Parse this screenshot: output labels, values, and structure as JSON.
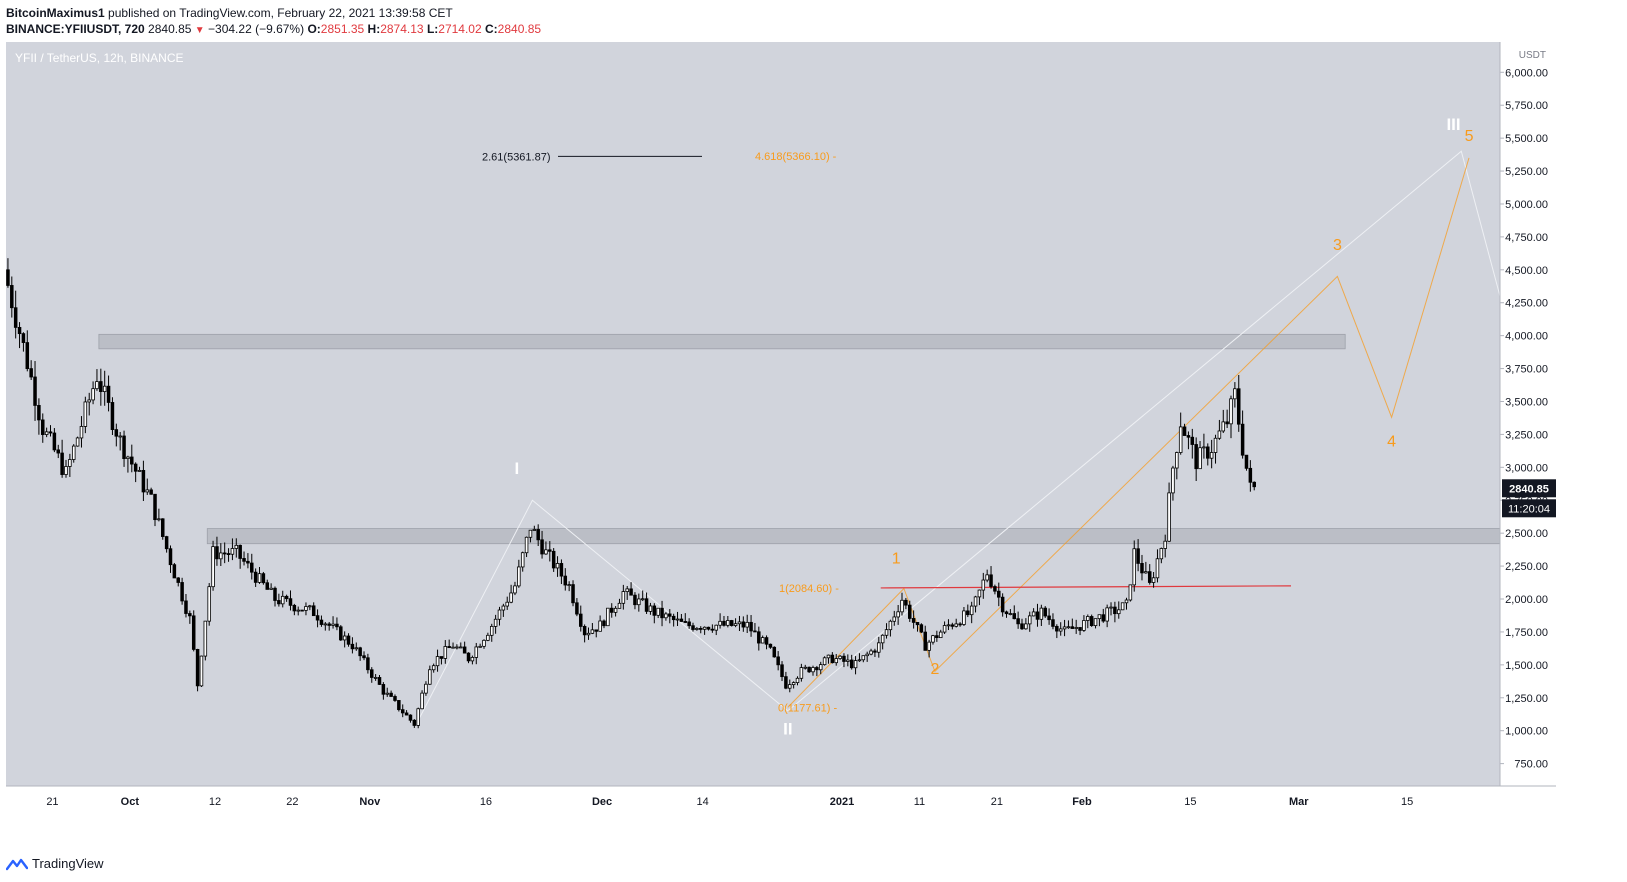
{
  "header": {
    "author": "BitcoinMaximus1",
    "published_text": "published on TradingView.com, February 22, 2021 13:39:58 CET",
    "symbol": "BINANCE:YFIIUSDT, 720",
    "last": "2840.85",
    "change": "−304.22 (−9.67%)",
    "o_label": "O:",
    "o_value": "2851.35",
    "h_label": "H:",
    "h_value": "2874.13",
    "l_label": "L:",
    "l_value": "2714.02",
    "c_label": "C:",
    "c_value": "2840.85"
  },
  "pane_title": "YFII / TetherUS, 12h, BINANCE",
  "footer": {
    "brand": "TradingView"
  },
  "colors": {
    "plot_bg": "#d1d4dc",
    "candle": "#000000",
    "fib_orange": "#f89b1c",
    "wave_orange": "#f89b1c",
    "wave_white": "#ffffff",
    "resistance_box": "#b8bbc3",
    "trendline_red": "#e0393e",
    "price_label_bg": "#131722"
  },
  "chart_data": {
    "type": "candlestick",
    "y_axis_unit": "USDT",
    "ylim": [
      580,
      6230
    ],
    "y_ticks": [
      "6,000.00",
      "5,750.00",
      "5,500.00",
      "5,250.00",
      "5,000.00",
      "4,750.00",
      "4,500.00",
      "4,250.00",
      "4,000.00",
      "3,750.00",
      "3,500.00",
      "3,250.00",
      "3,000.00",
      "2,750.00",
      "2,500.00",
      "2,250.00",
      "2,000.00",
      "1,750.00",
      "1,500.00",
      "1,250.00",
      "1,000.00",
      "750.00"
    ],
    "y_tick_values": [
      6000,
      5750,
      5500,
      5250,
      5000,
      4750,
      4500,
      4250,
      4000,
      3750,
      3500,
      3250,
      3000,
      2750,
      2500,
      2250,
      2000,
      1750,
      1500,
      1250,
      1000,
      750
    ],
    "x_start_date": "2020-09-15",
    "x_end_date": "2021-03-27",
    "x_ticks": [
      {
        "label": "21",
        "date": "2020-09-21"
      },
      {
        "label": "Oct",
        "date": "2020-10-01"
      },
      {
        "label": "12",
        "date": "2020-10-12"
      },
      {
        "label": "22",
        "date": "2020-10-22"
      },
      {
        "label": "Nov",
        "date": "2020-11-01"
      },
      {
        "label": "16",
        "date": "2020-11-16"
      },
      {
        "label": "Dec",
        "date": "2020-12-01"
      },
      {
        "label": "14",
        "date": "2020-12-14"
      },
      {
        "label": "2021",
        "date": "2021-01-01"
      },
      {
        "label": "11",
        "date": "2021-01-11"
      },
      {
        "label": "21",
        "date": "2021-01-21"
      },
      {
        "label": "Feb",
        "date": "2021-02-01"
      },
      {
        "label": "15",
        "date": "2021-02-15"
      },
      {
        "label": "Mar",
        "date": "2021-03-01"
      },
      {
        "label": "15",
        "date": "2021-03-15"
      }
    ],
    "price_anchors": [
      {
        "date": "2020-09-15",
        "price": 4500
      },
      {
        "date": "2020-09-18",
        "price": 3800
      },
      {
        "date": "2020-09-20",
        "price": 3300
      },
      {
        "date": "2020-09-23",
        "price": 2950
      },
      {
        "date": "2020-09-27",
        "price": 3700
      },
      {
        "date": "2020-09-30",
        "price": 3200
      },
      {
        "date": "2020-10-04",
        "price": 2750
      },
      {
        "date": "2020-10-07",
        "price": 2200
      },
      {
        "date": "2020-10-09",
        "price": 1850
      },
      {
        "date": "2020-10-10",
        "price": 1350
      },
      {
        "date": "2020-10-12",
        "price": 2350
      },
      {
        "date": "2020-10-15",
        "price": 2350
      },
      {
        "date": "2020-10-20",
        "price": 2000
      },
      {
        "date": "2020-10-25",
        "price": 1900
      },
      {
        "date": "2020-10-30",
        "price": 1650
      },
      {
        "date": "2020-11-03",
        "price": 1300
      },
      {
        "date": "2020-11-07",
        "price": 1050
      },
      {
        "date": "2020-11-09",
        "price": 1500
      },
      {
        "date": "2020-11-12",
        "price": 1650
      },
      {
        "date": "2020-11-14",
        "price": 1550
      },
      {
        "date": "2020-11-17",
        "price": 1800
      },
      {
        "date": "2020-11-20",
        "price": 2100
      },
      {
        "date": "2020-11-22",
        "price": 2550
      },
      {
        "date": "2020-11-24",
        "price": 2350
      },
      {
        "date": "2020-11-27",
        "price": 2100
      },
      {
        "date": "2020-11-29",
        "price": 1750
      },
      {
        "date": "2020-12-01",
        "price": 1800
      },
      {
        "date": "2020-12-04",
        "price": 2050
      },
      {
        "date": "2020-12-08",
        "price": 1900
      },
      {
        "date": "2020-12-12",
        "price": 1800
      },
      {
        "date": "2020-12-16",
        "price": 1800
      },
      {
        "date": "2020-12-20",
        "price": 1800
      },
      {
        "date": "2020-12-23",
        "price": 1600
      },
      {
        "date": "2020-12-25",
        "price": 1350
      },
      {
        "date": "2020-12-27",
        "price": 1450
      },
      {
        "date": "2020-12-31",
        "price": 1550
      },
      {
        "date": "2021-01-03",
        "price": 1500
      },
      {
        "date": "2021-01-06",
        "price": 1650
      },
      {
        "date": "2021-01-09",
        "price": 2000
      },
      {
        "date": "2021-01-12",
        "price": 1650
      },
      {
        "date": "2021-01-15",
        "price": 1800
      },
      {
        "date": "2021-01-18",
        "price": 1900
      },
      {
        "date": "2021-01-20",
        "price": 2200
      },
      {
        "date": "2021-01-22",
        "price": 1950
      },
      {
        "date": "2021-01-24",
        "price": 1800
      },
      {
        "date": "2021-01-27",
        "price": 1900
      },
      {
        "date": "2021-01-30",
        "price": 1750
      },
      {
        "date": "2021-02-03",
        "price": 1850
      },
      {
        "date": "2021-02-07",
        "price": 1950
      },
      {
        "date": "2021-02-08",
        "price": 2350
      },
      {
        "date": "2021-02-10",
        "price": 2100
      },
      {
        "date": "2021-02-12",
        "price": 2500
      },
      {
        "date": "2021-02-13",
        "price": 3000
      },
      {
        "date": "2021-02-14",
        "price": 3350
      },
      {
        "date": "2021-02-16",
        "price": 3050
      },
      {
        "date": "2021-02-18",
        "price": 3150
      },
      {
        "date": "2021-02-20",
        "price": 3350
      },
      {
        "date": "2021-02-21",
        "price": 3550
      },
      {
        "date": "2021-02-22",
        "price": 3150
      },
      {
        "date": "2021-02-23",
        "price": 2840
      }
    ],
    "last_price_label": "2840.85",
    "countdown_label": "11:20:04",
    "fib_levels": [
      {
        "label": "2.61(5361.87)",
        "price": 5361.87,
        "color": "#131722"
      },
      {
        "label": "4.618(5366.10)",
        "price": 5366.1,
        "color": "#f89b1c"
      },
      {
        "label": "1(2084.60)",
        "price": 2084.6,
        "color": "#f89b1c"
      },
      {
        "label": "0(1177.61)",
        "price": 1177.61,
        "color": "#f89b1c"
      }
    ],
    "zones": [
      {
        "from_price": 3900,
        "to_price": 4010,
        "from_date": "2020-09-27",
        "to_date": "2021-03-07"
      },
      {
        "from_price": 2420,
        "to_price": 2535,
        "from_date": "2020-10-11",
        "to_date": "2021-03-27"
      }
    ],
    "red_trendline": {
      "from_date": "2021-01-06",
      "to_date": "2021-02-28",
      "from_price": 2084,
      "to_price": 2100
    },
    "wave_labels_white": [
      {
        "text": "I",
        "date": "2020-11-20",
        "price": 2950
      },
      {
        "text": "II",
        "date": "2020-12-25",
        "price": 970
      },
      {
        "text": "III",
        "date": "2021-03-21",
        "price": 5560
      }
    ],
    "wave_labels_orange": [
      {
        "text": "1",
        "date": "2021-01-08",
        "price": 2270
      },
      {
        "text": "2",
        "date": "2021-01-13",
        "price": 1430
      },
      {
        "text": "3",
        "date": "2021-03-06",
        "price": 4650
      },
      {
        "text": "4",
        "date": "2021-03-13",
        "price": 3160
      },
      {
        "text": "5",
        "date": "2021-03-23",
        "price": 5480
      }
    ],
    "white_wave_path": [
      {
        "date": "2020-11-07",
        "price": 1050
      },
      {
        "date": "2020-11-22",
        "price": 2750
      },
      {
        "date": "2020-12-25",
        "price": 1150
      },
      {
        "date": "2021-03-22",
        "price": 5400
      },
      {
        "date": "2021-03-27",
        "price": 4300
      }
    ],
    "orange_wave_path": [
      {
        "date": "2020-12-25",
        "price": 1177
      },
      {
        "date": "2021-01-09",
        "price": 2080
      },
      {
        "date": "2021-01-13",
        "price": 1450
      },
      {
        "date": "2021-03-06",
        "price": 4450
      },
      {
        "date": "2021-03-13",
        "price": 3380
      },
      {
        "date": "2021-03-23",
        "price": 5350
      }
    ]
  }
}
